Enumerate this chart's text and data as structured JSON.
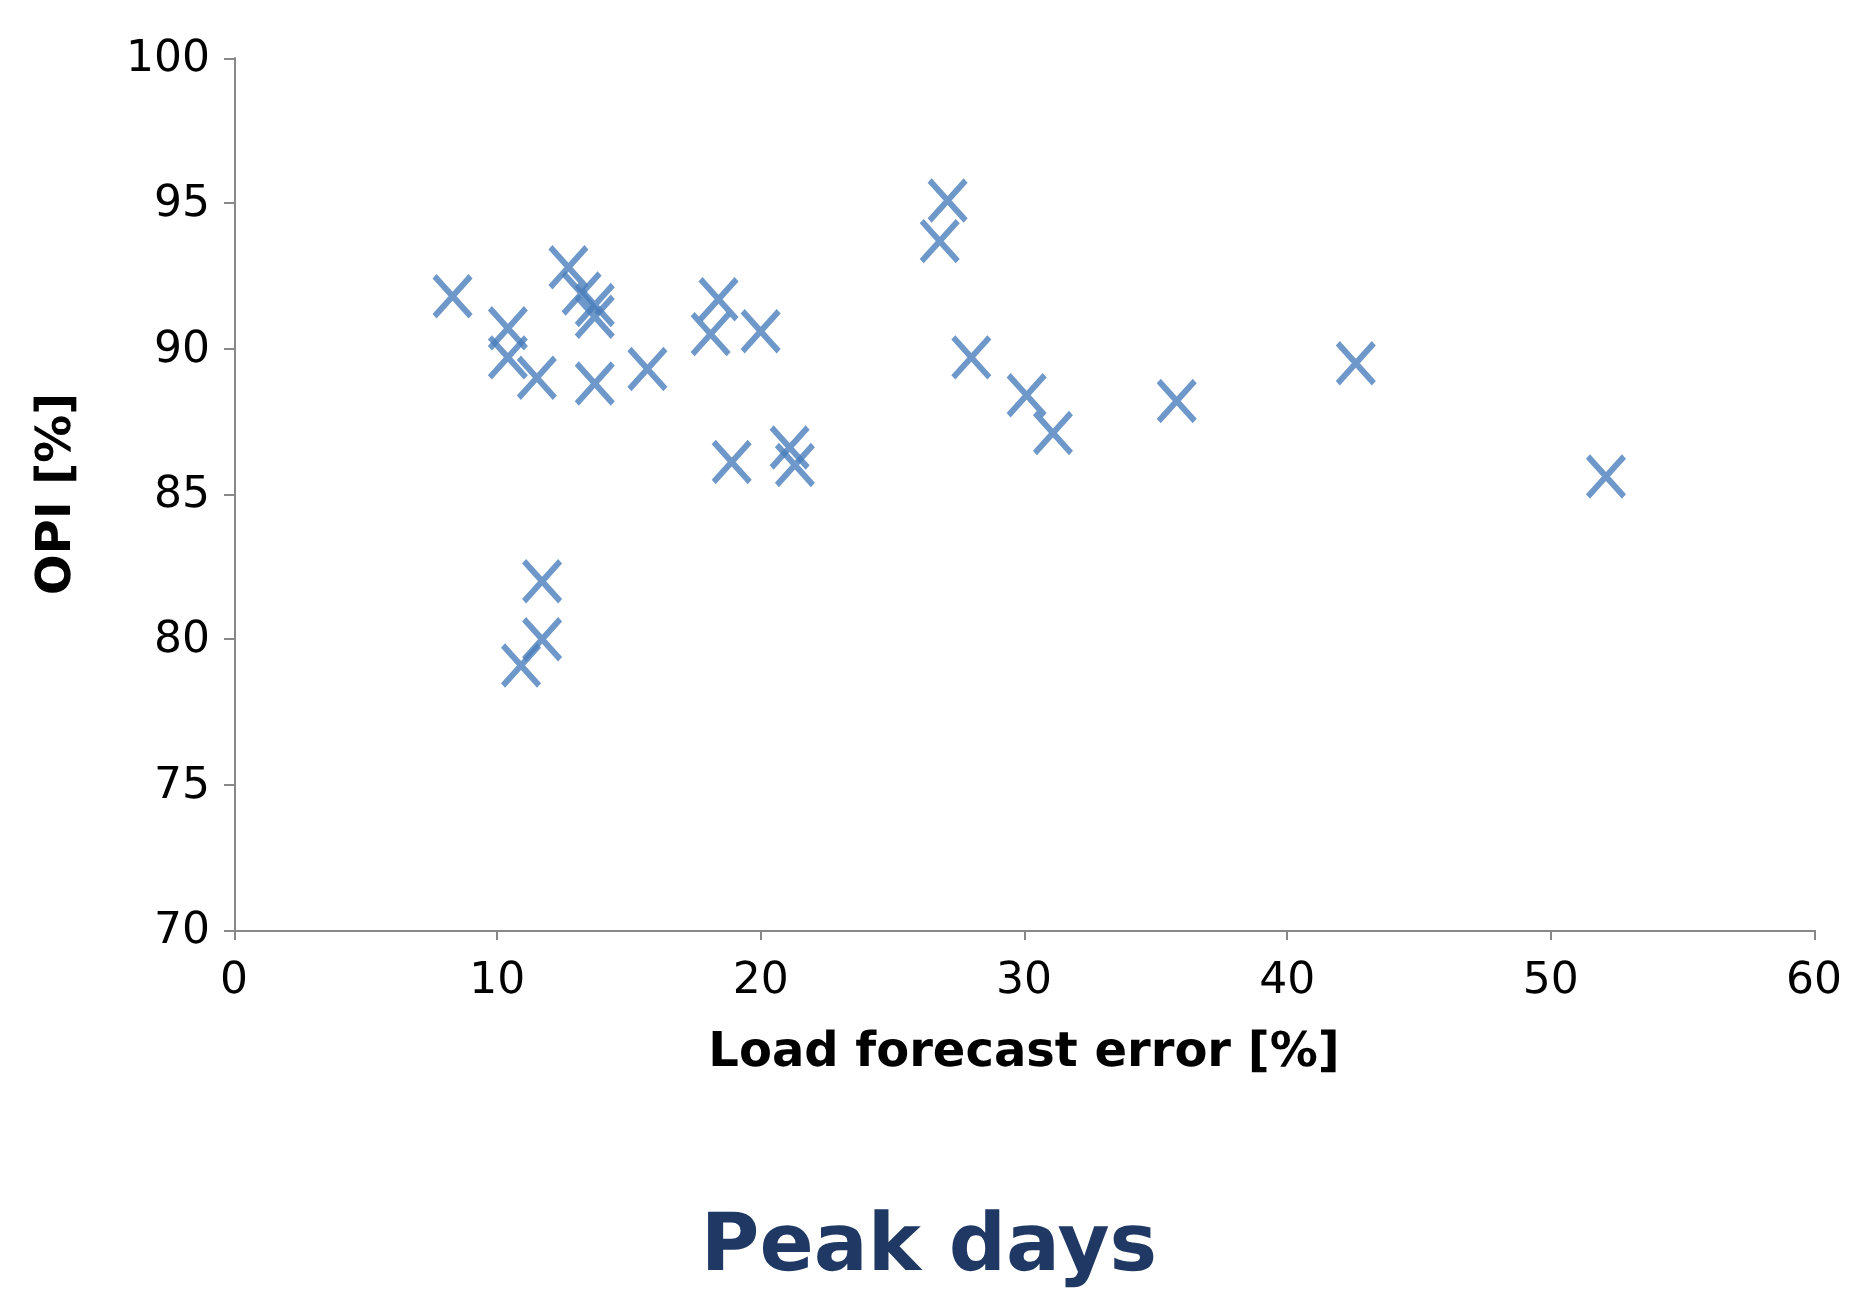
{
  "chart_data": {
    "type": "scatter",
    "title": "Peak days",
    "xlabel": "Load forecast error [%]",
    "ylabel": "OPI [%]",
    "x": [
      8.3,
      10.4,
      10.4,
      11.5,
      12.7,
      13.2,
      13.7,
      13.7,
      13.7,
      15.7,
      18.4,
      18.1,
      20.0,
      18.9,
      21.1,
      21.3,
      11.7,
      11.7,
      10.9,
      27.1,
      26.8,
      28.0,
      30.1,
      31.1,
      35.8,
      42.6,
      52.1
    ],
    "values": [
      91.8,
      90.7,
      89.7,
      89.0,
      92.8,
      91.9,
      91.5,
      91.1,
      88.8,
      89.3,
      91.7,
      90.5,
      90.6,
      86.1,
      86.6,
      86.0,
      82.0,
      80.0,
      79.1,
      95.1,
      93.7,
      89.7,
      88.4,
      87.1,
      88.2,
      89.5,
      85.6
    ],
    "color": "#4a7ebb",
    "marker": "cross",
    "xlim": [
      0,
      60
    ],
    "xticks": [
      0,
      10,
      20,
      30,
      40,
      50,
      60
    ],
    "ylim": [
      70,
      100
    ],
    "yticks": [
      70,
      75,
      80,
      85,
      90,
      95,
      100
    ],
    "grid": false
  }
}
